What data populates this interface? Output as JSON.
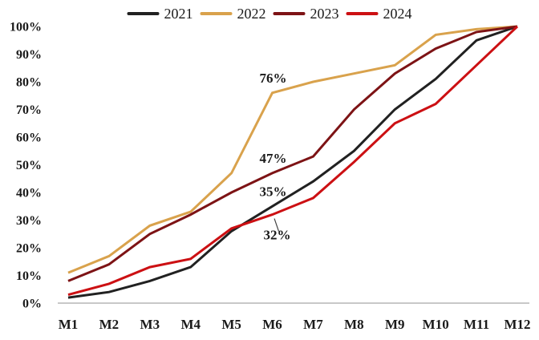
{
  "page": {
    "background": "#ffffff",
    "text_color": "#1a1a1a",
    "axis_line_color": "#a8a8a8"
  },
  "chart_data": {
    "type": "line",
    "title": "",
    "xlabel": "",
    "ylabel": "",
    "categories": [
      "M1",
      "M2",
      "M3",
      "M4",
      "M5",
      "M6",
      "M7",
      "M8",
      "M9",
      "M10",
      "M11",
      "M12"
    ],
    "series": [
      {
        "name": "2021",
        "color": "#212121",
        "values": [
          2,
          4,
          8,
          13,
          26,
          35,
          44,
          55,
          70,
          81,
          95,
          100
        ]
      },
      {
        "name": "2022",
        "color": "#D9A24C",
        "values": [
          11,
          17,
          28,
          33,
          47,
          76,
          80,
          83,
          86,
          97,
          99,
          100
        ]
      },
      {
        "name": "2023",
        "color": "#7D1315",
        "values": [
          8,
          14,
          25,
          32,
          40,
          47,
          53,
          70,
          83,
          92,
          98,
          100
        ]
      },
      {
        "name": "2024",
        "color": "#CC1013",
        "values": [
          3,
          7,
          13,
          16,
          27,
          32,
          38,
          51,
          65,
          72,
          86,
          100
        ]
      }
    ],
    "ylim": [
      0,
      100
    ],
    "ytick_labels": [
      "0%",
      "10%",
      "20%",
      "30%",
      "40%",
      "50%",
      "60%",
      "70%",
      "80%",
      "90%",
      "100%"
    ],
    "ytick_values": [
      0,
      10,
      20,
      30,
      40,
      50,
      60,
      70,
      80,
      90,
      100
    ],
    "grid": false,
    "legend_position": "top",
    "annotations": [
      {
        "label": "76%",
        "series": "2022",
        "category": "M6",
        "value": 76,
        "placement": "above"
      },
      {
        "label": "47%",
        "series": "2023",
        "category": "M6",
        "value": 47,
        "placement": "above"
      },
      {
        "label": "35%",
        "series": "2021",
        "category": "M6",
        "value": 35,
        "placement": "above"
      },
      {
        "label": "32%",
        "series": "2024",
        "category": "M6",
        "value": 32,
        "placement": "below-leader"
      }
    ]
  }
}
